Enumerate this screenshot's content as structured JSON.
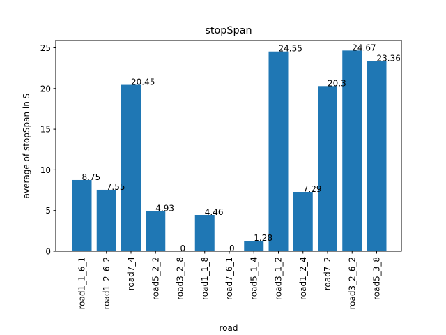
{
  "chart_data": {
    "type": "bar",
    "title": "stopSpan",
    "xlabel": "road",
    "ylabel": "average of stopSpan in S",
    "categories": [
      "road1_1_6_1",
      "road1_2_6_2",
      "road7_4",
      "road5_2_2",
      "road3_2_8",
      "road1_1_8",
      "road7_6_1",
      "road5_1_4",
      "road3_1_2",
      "road1_2_4",
      "road7_2",
      "road3_2_6_2",
      "road5_3_8"
    ],
    "values": [
      8.75,
      7.55,
      20.45,
      4.93,
      0,
      4.46,
      0,
      1.28,
      24.55,
      7.29,
      20.3,
      24.67,
      23.36
    ],
    "data_labels": [
      "8.75",
      "7.55",
      "20.45",
      "4.93",
      "0",
      "4.46",
      "0",
      "1.28",
      "24.55",
      "7.29",
      "20.3",
      "24.67",
      "23.36"
    ],
    "ylim": [
      0,
      25.9
    ],
    "yticks": [
      0,
      5,
      10,
      15,
      20,
      25
    ],
    "grid": false,
    "bar_color": "#1f77b4"
  }
}
